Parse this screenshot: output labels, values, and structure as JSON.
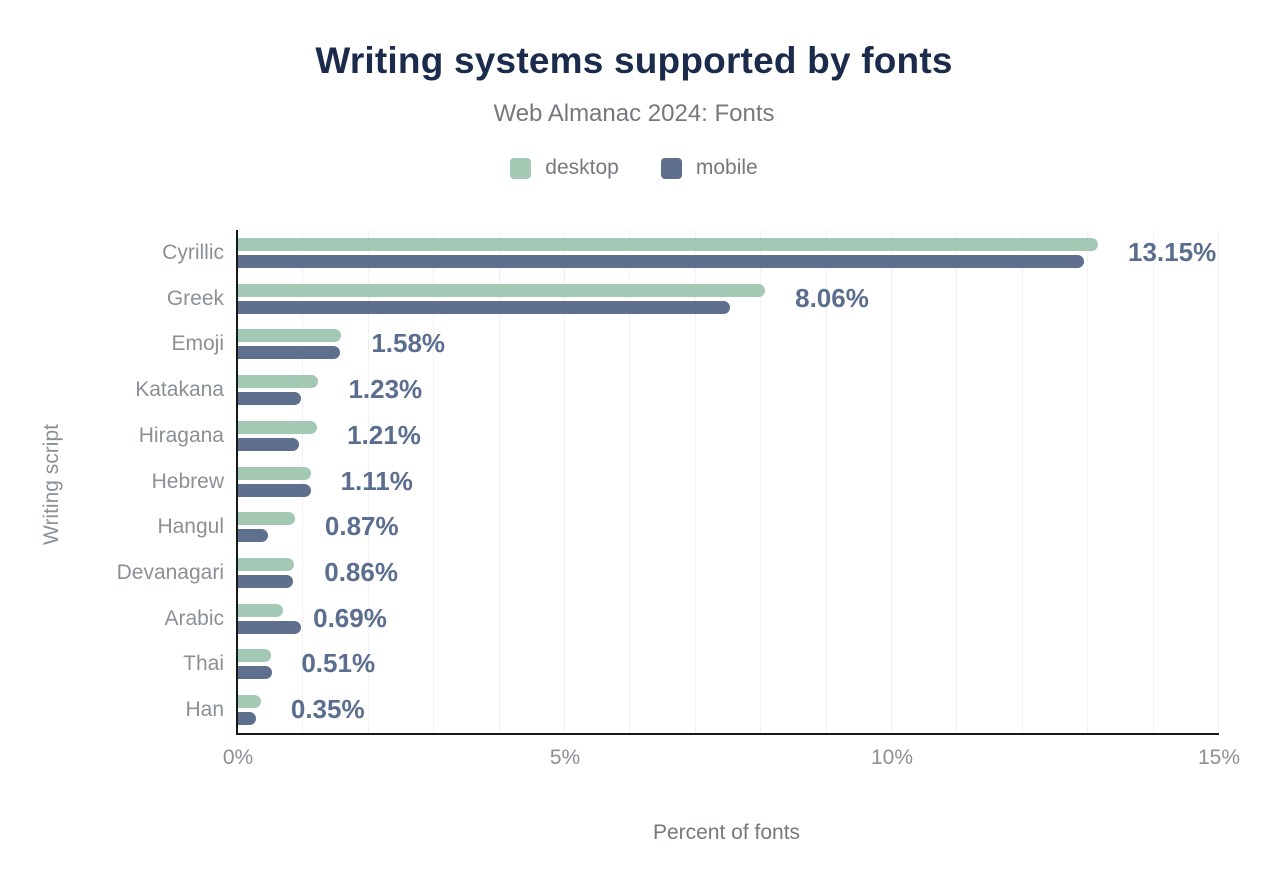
{
  "title": {
    "text": "Writing systems supported by fonts"
  },
  "subtitle": {
    "text": "Web Almanac 2024: Fonts"
  },
  "legend": {
    "items": [
      {
        "label": "desktop",
        "color": "#a3c9b4"
      },
      {
        "label": "mobile",
        "color": "#5e708d"
      }
    ]
  },
  "chart_data": {
    "type": "bar",
    "orientation": "horizontal",
    "title": "Writing systems supported by fonts",
    "subtitle": "Web Almanac 2024: Fonts",
    "xlabel": "Percent of fonts",
    "ylabel": "Writing script",
    "xlim": [
      0,
      15
    ],
    "x_ticks": [
      {
        "value": 0,
        "label": "0%"
      },
      {
        "value": 5,
        "label": "5%"
      },
      {
        "value": 10,
        "label": "10%"
      },
      {
        "value": 15,
        "label": "15%"
      }
    ],
    "grid": {
      "vertical_interval_percent": 1,
      "color": "#f0f1f3"
    },
    "legend_position": "top",
    "categories": [
      "Cyrillic",
      "Greek",
      "Emoji",
      "Katakana",
      "Hiragana",
      "Hebrew",
      "Hangul",
      "Devanagari",
      "Arabic",
      "Thai",
      "Han"
    ],
    "series": [
      {
        "name": "desktop",
        "color": "#a3c9b4",
        "values": [
          13.15,
          8.06,
          1.58,
          1.23,
          1.21,
          1.11,
          0.87,
          0.86,
          0.69,
          0.51,
          0.35
        ]
      },
      {
        "name": "mobile",
        "color": "#5e708d",
        "values": [
          12.93,
          7.53,
          1.56,
          0.96,
          0.94,
          1.12,
          0.46,
          0.84,
          0.96,
          0.52,
          0.28
        ]
      }
    ],
    "value_labels": [
      "13.15%",
      "8.06%",
      "1.58%",
      "1.23%",
      "1.21%",
      "1.11%",
      "0.87%",
      "0.86%",
      "0.69%",
      "0.51%",
      "0.35%"
    ],
    "value_labels_follow_series": "desktop"
  },
  "colors": {
    "background": "#ffffff",
    "title": "#1b2b4b",
    "subtitle": "#75797f",
    "axis_text": "#8b9096",
    "value_label": "#5b6e8f",
    "axis_line": "#16191c",
    "gridline": "#f0f1f3",
    "desktop_bar": "#a3c9b4",
    "mobile_bar": "#5e708d"
  }
}
